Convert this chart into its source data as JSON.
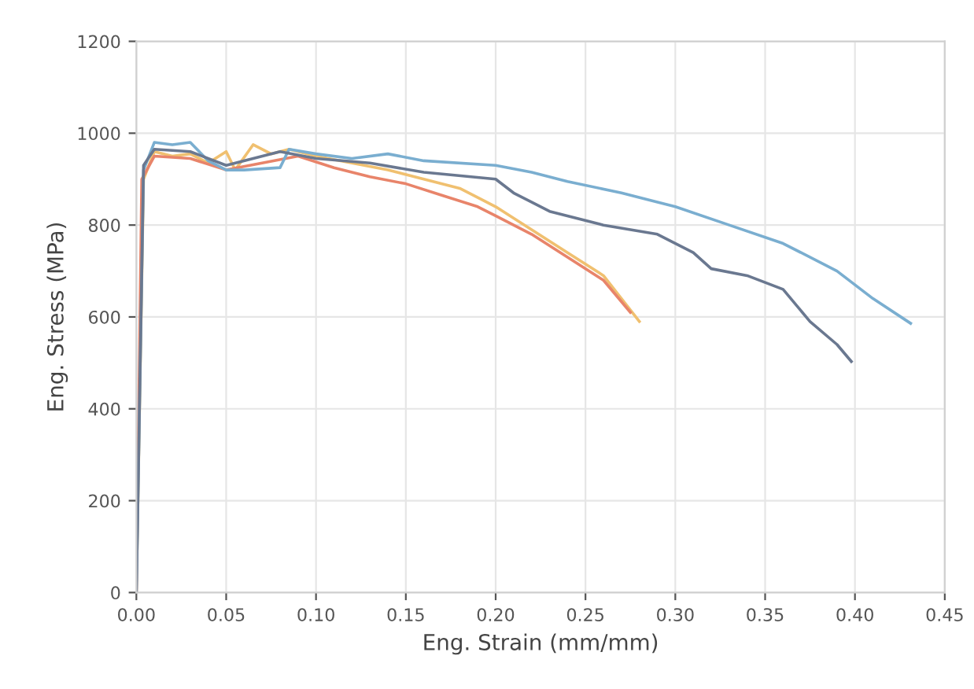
{
  "chart_data": {
    "type": "line",
    "xlabel": "Eng. Strain (mm/mm)",
    "ylabel": "Eng. Stress (MPa)",
    "xlim": [
      0,
      0.45
    ],
    "ylim": [
      0,
      1200
    ],
    "xticks": [
      {
        "value": 0,
        "label": "0.00"
      },
      {
        "value": 0.05,
        "label": "0.05"
      },
      {
        "value": 0.1,
        "label": "0.10"
      },
      {
        "value": 0.15,
        "label": "0.15"
      },
      {
        "value": 0.2,
        "label": "0.20"
      },
      {
        "value": 0.25,
        "label": "0.25"
      },
      {
        "value": 0.3,
        "label": "0.30"
      },
      {
        "value": 0.35,
        "label": "0.35"
      },
      {
        "value": 0.4,
        "label": "0.40"
      },
      {
        "value": 0.45,
        "label": "0.45"
      }
    ],
    "yticks": [
      0,
      200,
      400,
      600,
      800,
      1000,
      1200
    ],
    "grid": true,
    "marker": "none",
    "line_style": "solid",
    "series": [
      {
        "color": "#f0c070",
        "x": [
          0,
          0.004,
          0.01,
          0.02,
          0.03,
          0.04,
          0.05,
          0.055,
          0.065,
          0.075,
          0.085,
          0.1,
          0.12,
          0.14,
          0.16,
          0.18,
          0.2,
          0.22,
          0.24,
          0.26,
          0.27,
          0.28
        ],
        "values": [
          0,
          900,
          960,
          950,
          955,
          935,
          960,
          920,
          975,
          955,
          965,
          950,
          935,
          920,
          900,
          880,
          840,
          790,
          740,
          690,
          640,
          590
        ]
      },
      {
        "color": "#e8846a",
        "x": [
          0,
          0.003,
          0.01,
          0.03,
          0.05,
          0.07,
          0.09,
          0.11,
          0.13,
          0.15,
          0.17,
          0.19,
          0.2,
          0.22,
          0.24,
          0.26,
          0.275
        ],
        "values": [
          0,
          900,
          950,
          945,
          920,
          935,
          950,
          925,
          905,
          890,
          865,
          840,
          820,
          780,
          730,
          680,
          610
        ]
      },
      {
        "color": "#7aaed0",
        "x": [
          0,
          0.004,
          0.01,
          0.02,
          0.03,
          0.04,
          0.05,
          0.06,
          0.08,
          0.085,
          0.1,
          0.12,
          0.14,
          0.16,
          0.2,
          0.22,
          0.24,
          0.27,
          0.3,
          0.33,
          0.36,
          0.39,
          0.41,
          0.431
        ],
        "values": [
          0,
          920,
          980,
          975,
          980,
          940,
          920,
          920,
          925,
          965,
          955,
          945,
          955,
          940,
          930,
          915,
          895,
          870,
          840,
          800,
          760,
          700,
          640,
          586
        ]
      },
      {
        "color": "#6a7890",
        "x": [
          0,
          0.004,
          0.01,
          0.03,
          0.05,
          0.08,
          0.1,
          0.13,
          0.16,
          0.2,
          0.21,
          0.23,
          0.26,
          0.29,
          0.31,
          0.32,
          0.34,
          0.36,
          0.375,
          0.39,
          0.398
        ],
        "values": [
          0,
          930,
          965,
          960,
          930,
          960,
          945,
          935,
          915,
          900,
          870,
          830,
          800,
          780,
          740,
          705,
          690,
          660,
          590,
          540,
          503
        ]
      }
    ]
  }
}
